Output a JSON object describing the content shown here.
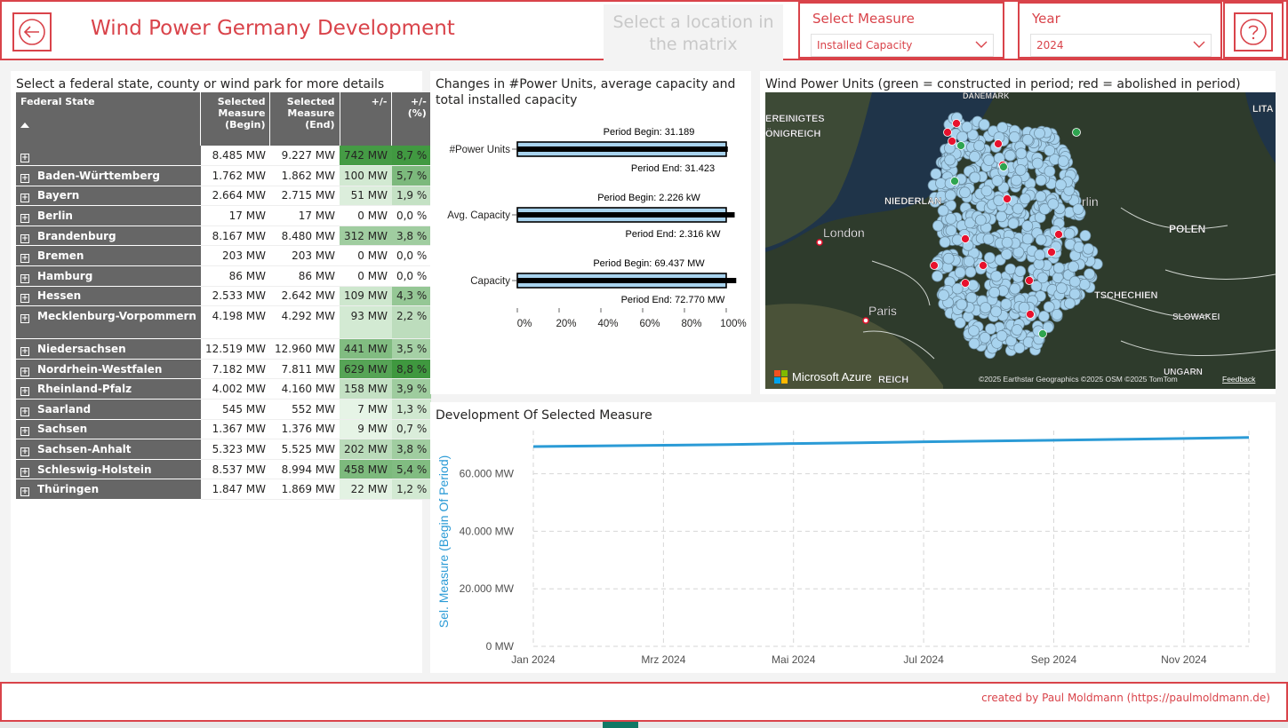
{
  "header": {
    "title": "Wind Power Germany Development",
    "hint": "Select a location in the matrix",
    "measure_label": "Select Measure",
    "measure_value": "Installed Capacity",
    "year_label": "Year",
    "year_value": "2024"
  },
  "matrix": {
    "title": "Select a federal state, county or wind park for more details",
    "columns": [
      "Federal State",
      "Selected Measure (Begin)",
      "Selected Measure (End)",
      "+/-",
      "+/- (%)"
    ],
    "rows": [
      {
        "state": "",
        "begin": "8.485 MW",
        "end": "9.227 MW",
        "diff": "742 MW",
        "pct": "8,7 %",
        "diff_level": 0.95,
        "pct_level": 0.97
      },
      {
        "state": "Baden-Württemberg",
        "begin": "1.762 MW",
        "end": "1.862 MW",
        "diff": "100 MW",
        "pct": "5,7 %",
        "diff_level": 0.13,
        "pct_level": 0.63
      },
      {
        "state": "Bayern",
        "begin": "2.664 MW",
        "end": "2.715 MW",
        "diff": "51 MW",
        "pct": "1,9 %",
        "diff_level": 0.07,
        "pct_level": 0.21
      },
      {
        "state": "Berlin",
        "begin": "17 MW",
        "end": "17 MW",
        "diff": "0 MW",
        "pct": "0,0 %",
        "diff_level": 0,
        "pct_level": 0
      },
      {
        "state": "Brandenburg",
        "begin": "8.167 MW",
        "end": "8.480 MW",
        "diff": "312 MW",
        "pct": "3,8 %",
        "diff_level": 0.42,
        "pct_level": 0.42
      },
      {
        "state": "Bremen",
        "begin": "203 MW",
        "end": "203 MW",
        "diff": "0 MW",
        "pct": "0,0 %",
        "diff_level": 0,
        "pct_level": 0
      },
      {
        "state": "Hamburg",
        "begin": "86 MW",
        "end": "86 MW",
        "diff": "0 MW",
        "pct": "0,0 %",
        "diff_level": 0,
        "pct_level": 0
      },
      {
        "state": "Hessen",
        "begin": "2.533 MW",
        "end": "2.642 MW",
        "diff": "109 MW",
        "pct": "4,3 %",
        "diff_level": 0.15,
        "pct_level": 0.48
      },
      {
        "state": "Mecklenburg-Vorpommern",
        "begin": "4.198 MW",
        "end": "4.292 MW",
        "diff": "93 MW",
        "pct": "2,2 %",
        "diff_level": 0.12,
        "pct_level": 0.25
      },
      {
        "state": "Niedersachsen",
        "begin": "12.519 MW",
        "end": "12.960 MW",
        "diff": "441 MW",
        "pct": "3,5 %",
        "diff_level": 0.6,
        "pct_level": 0.39
      },
      {
        "state": "Nordrhein-Westfalen",
        "begin": "7.182 MW",
        "end": "7.811 MW",
        "diff": "629 MW",
        "pct": "8,8 %",
        "diff_level": 0.85,
        "pct_level": 0.98
      },
      {
        "state": "Rheinland-Pfalz",
        "begin": "4.002 MW",
        "end": "4.160 MW",
        "diff": "158 MW",
        "pct": "3,9 %",
        "diff_level": 0.21,
        "pct_level": 0.43
      },
      {
        "state": "Saarland",
        "begin": "545 MW",
        "end": "552 MW",
        "diff": "7 MW",
        "pct": "1,3 %",
        "diff_level": 0.01,
        "pct_level": 0.14
      },
      {
        "state": "Sachsen",
        "begin": "1.367 MW",
        "end": "1.376 MW",
        "diff": "9 MW",
        "pct": "0,7 %",
        "diff_level": 0.01,
        "pct_level": 0.08
      },
      {
        "state": "Sachsen-Anhalt",
        "begin": "5.323 MW",
        "end": "5.525 MW",
        "diff": "202 MW",
        "pct": "3,8 %",
        "diff_level": 0.27,
        "pct_level": 0.42
      },
      {
        "state": "Schleswig-Holstein",
        "begin": "8.537 MW",
        "end": "8.994 MW",
        "diff": "458 MW",
        "pct": "5,4 %",
        "diff_level": 0.62,
        "pct_level": 0.6
      },
      {
        "state": "Thüringen",
        "begin": "1.847 MW",
        "end": "1.869 MW",
        "diff": "22 MW",
        "pct": "1,2 %",
        "diff_level": 0.03,
        "pct_level": 0.13
      }
    ]
  },
  "changes": {
    "title": "Changes in #Power Units, average capacity and total installed capacity",
    "axis_ticks": [
      "0%",
      "20%",
      "40%",
      "60%",
      "80%",
      "100%"
    ],
    "rows": [
      {
        "label": "#Power Units",
        "begin_label": "Period Begin: 31.189",
        "end_label": "Period End: 31.423",
        "begin_pct": 100,
        "end_pct": 100.75
      },
      {
        "label": "Avg. Capacity",
        "begin_label": "Period Begin: 2.226 kW",
        "end_label": "Period End: 2.316 kW",
        "begin_pct": 100,
        "end_pct": 104.04
      },
      {
        "label": "Capacity",
        "begin_label": "Period Begin: 69.437 MW",
        "end_label": "Period End: 72.770 MW",
        "begin_pct": 100,
        "end_pct": 104.8
      }
    ]
  },
  "map": {
    "title": "Wind Power Units (green = constructed in period; red = abolished in period)",
    "labels": {
      "danemark": "DANEMARK",
      "uk1": "EREINIGTES",
      "uk2": "ÖNIGREICH",
      "niederlande": "NIEDERLAN",
      "berlin": "rlin",
      "polen": "POLEN",
      "london": "London",
      "paris": "Paris",
      "tschechien": "TSCHECHIEN",
      "slowakei": "SLOWAKEI",
      "ungarn": "UNGARN",
      "litauen": "LITA",
      "frankreich": "REICH"
    },
    "brand": "Microsoft Azure",
    "attribution": "©2025 Earthstar Geographics ©2025 OSM ©2025 TomTom",
    "feedback": "Feedback",
    "colors": {
      "unit": "#a8d3ee",
      "constructed": "#2ea44f",
      "abolished": "#e8112d"
    }
  },
  "development": {
    "title": "Development Of Selected Measure",
    "ylabel": "Sel. Measure (Begin Of Period)",
    "yticks": [
      "0 MW",
      "20.000 MW",
      "40.000 MW",
      "60.000 MW"
    ],
    "xticks": [
      "Jan 2024",
      "Mrz 2024",
      "Mai 2024",
      "Jul 2024",
      "Sep 2024",
      "Nov 2024"
    ]
  },
  "chart_data": [
    {
      "type": "bar",
      "title": "Changes in #Power Units, average capacity and total installed capacity",
      "categories": [
        "#Power Units",
        "Avg. Capacity",
        "Capacity"
      ],
      "series": [
        {
          "name": "Period Begin",
          "values": [
            31189,
            2226,
            69437
          ]
        },
        {
          "name": "Period End",
          "values": [
            31423,
            2316,
            72770
          ]
        }
      ],
      "xlim": [
        0,
        100
      ]
    },
    {
      "type": "line",
      "title": "Development Of Selected Measure",
      "ylabel": "Sel. Measure (Begin Of Period)",
      "x": [
        "2024-01-01",
        "2024-02-01",
        "2024-03-01",
        "2024-04-01",
        "2024-05-01",
        "2024-06-01",
        "2024-07-01",
        "2024-08-01",
        "2024-09-01",
        "2024-10-01",
        "2024-11-01",
        "2024-12-01"
      ],
      "values": [
        69437,
        69650,
        69900,
        70150,
        70500,
        70750,
        71100,
        71350,
        71650,
        71950,
        72250,
        72600
      ],
      "ylim": [
        0,
        75000
      ],
      "grid": true
    }
  ],
  "footer": {
    "credit": "created by Paul Moldmann (https://paulmoldmann.de)"
  }
}
